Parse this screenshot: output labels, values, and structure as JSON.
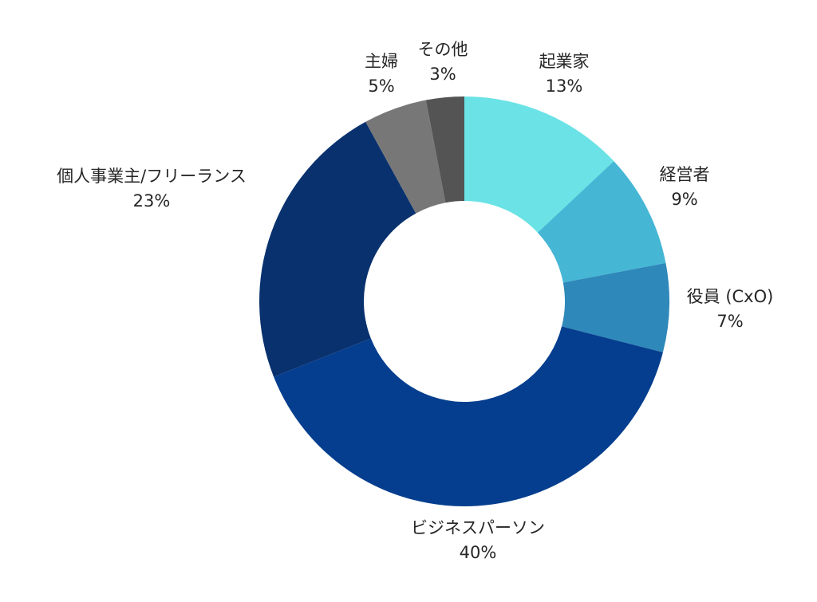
{
  "chart_data": {
    "type": "pie",
    "donut": true,
    "title": "",
    "legend": "none",
    "slices": [
      {
        "name": "起業家",
        "value": 13,
        "label": "13%",
        "color": "#6be3e6"
      },
      {
        "name": "経営者",
        "value": 9,
        "label": "9%",
        "color": "#45b7d5"
      },
      {
        "name": "役員 (CxO)",
        "value": 7,
        "label": "7%",
        "color": "#2e88ba"
      },
      {
        "name": "ビジネスパーソン",
        "value": 40,
        "label": "40%",
        "color": "#053e8e"
      },
      {
        "name": "個人事業主/フリーランス",
        "value": 23,
        "label": "23%",
        "color": "#09316e"
      },
      {
        "name": "主婦",
        "value": 5,
        "label": "5%",
        "color": "#777777"
      },
      {
        "name": "その他",
        "value": 3,
        "label": "3%",
        "color": "#545454"
      }
    ]
  }
}
